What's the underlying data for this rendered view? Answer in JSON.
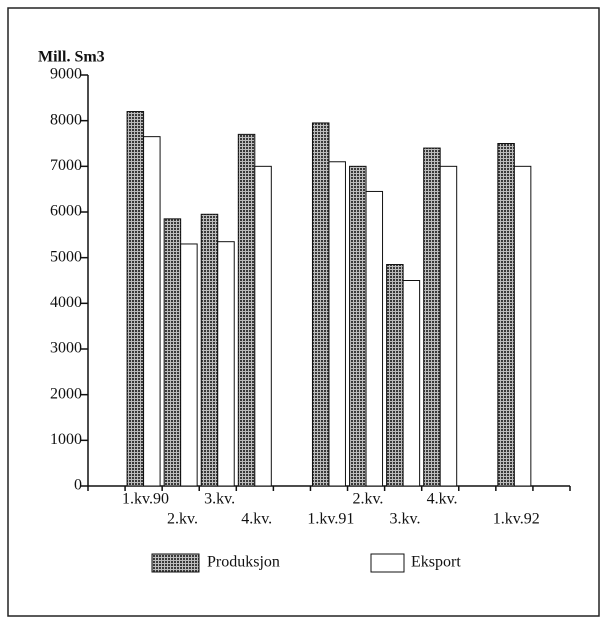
{
  "chart_data": {
    "type": "bar",
    "title": "Mill. Sm3",
    "categories": [
      null,
      "1.kv.90",
      "2.kv.",
      "3.kv.",
      "4.kv.",
      null,
      "1.kv.91",
      "2.kv.",
      "3.kv.",
      "4.kv.",
      null,
      "1.kv.92",
      null
    ],
    "series": [
      {
        "name": "Produksjon",
        "color": "#3a3a3a",
        "values": [
          null,
          8200,
          5850,
          5950,
          7700,
          null,
          7950,
          7000,
          4850,
          7400,
          null,
          7500,
          null
        ]
      },
      {
        "name": "Eksport",
        "color": "#ffffff",
        "values": [
          null,
          7650,
          5300,
          5350,
          7000,
          null,
          7100,
          6450,
          4500,
          7000,
          null,
          7000,
          null
        ]
      }
    ],
    "ylim": [
      0,
      9000
    ],
    "yticks": [
      0,
      1000,
      2000,
      3000,
      4000,
      5000,
      6000,
      7000,
      8000,
      9000
    ],
    "grid": false,
    "legend": "bottom"
  }
}
